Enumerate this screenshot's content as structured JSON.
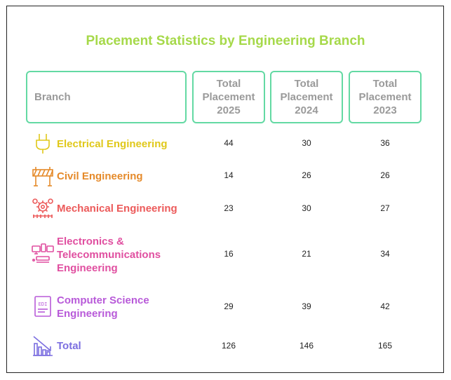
{
  "title": "Placement Statistics by Engineering Branch",
  "headers": {
    "branch": "Branch",
    "col_2025": [
      "Total",
      "Placement",
      "2025"
    ],
    "col_2024": [
      "Total",
      "Placement",
      "2024"
    ],
    "col_2023": [
      "Total",
      "Placement",
      "2023"
    ]
  },
  "rows": [
    {
      "label_lines": [
        "Electrical Engineering"
      ],
      "color": "#e0c81a",
      "icon": "plug-icon",
      "v2025": "44",
      "v2024": "30",
      "v2023": "36"
    },
    {
      "label_lines": [
        "Civil Engineering"
      ],
      "color": "#e58a2a",
      "icon": "barrier-icon",
      "v2025": "14",
      "v2024": "26",
      "v2023": "26"
    },
    {
      "label_lines": [
        "Mechanical Engineering"
      ],
      "color": "#ec5a5a",
      "icon": "gears-icon",
      "v2025": "23",
      "v2024": "30",
      "v2023": "27"
    },
    {
      "label_lines": [
        "Electronics &",
        "Telecommunications",
        "Engineering"
      ],
      "color": "#e04fa0",
      "icon": "devices-icon",
      "v2025": "16",
      "v2024": "21",
      "v2023": "34"
    },
    {
      "label_lines": [
        "Computer Science",
        "Engineering"
      ],
      "color": "#b85ad9",
      "icon": "code-document-icon",
      "v2025": "29",
      "v2024": "39",
      "v2023": "42"
    },
    {
      "label_lines": [
        "Total"
      ],
      "color": "#7b6ee0",
      "icon": "bar-chart-icon",
      "v2025": "126",
      "v2024": "146",
      "v2023": "165"
    }
  ]
}
